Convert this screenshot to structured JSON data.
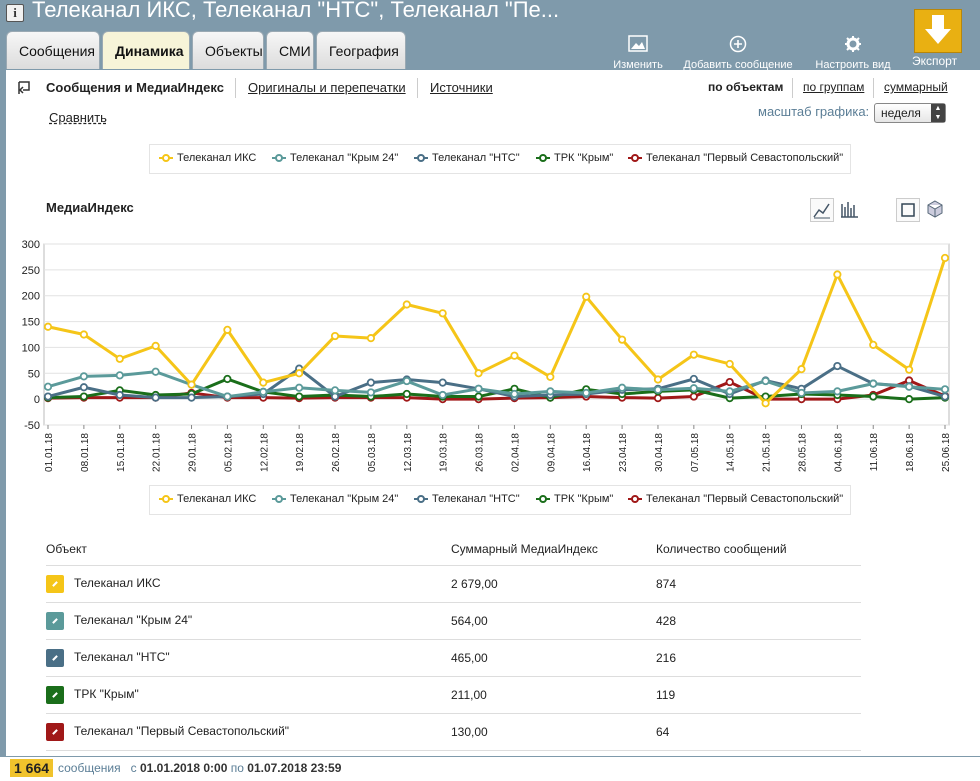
{
  "title": "Телеканал ИКС, Телеканал \"НТС\", Телеканал \"Пе...",
  "tabs": [
    {
      "label": "Сообщения"
    },
    {
      "label": "Динамика"
    },
    {
      "label": "Объекты"
    },
    {
      "label": "СМИ"
    },
    {
      "label": "География"
    }
  ],
  "toolbar": {
    "edit_label": "Изменить",
    "add_label": "Добавить сообщение",
    "customize_label": "Настроить вид",
    "export_label": "Экспорт"
  },
  "subnav": {
    "current": "Сообщения и МедиаИндекс",
    "originals": "Оригиналы и перепечатки",
    "sources": "Источники",
    "compare": "Сравнить",
    "by_objects": "по объектам",
    "by_groups": "по группам",
    "total": "суммарный",
    "scale_label": "масштаб графика:",
    "scale_value": "неделя"
  },
  "legend": [
    {
      "name": "Телеканал ИКС",
      "color": "#f5c518"
    },
    {
      "name": "Телеканал \"Крым 24\"",
      "color": "#5b9a9a"
    },
    {
      "name": "Телеканал \"НТС\"",
      "color": "#4a6f86"
    },
    {
      "name": "ТРК \"Крым\"",
      "color": "#1a6e1a"
    },
    {
      "name": "Телеканал \"Первый Севастопольский\"",
      "color": "#a01818"
    }
  ],
  "chart_data": {
    "type": "line",
    "title": "МедиаИндекс",
    "ylim": [
      -50,
      300
    ],
    "yticks": [
      300,
      250,
      200,
      150,
      100,
      50,
      0,
      -50
    ],
    "x": [
      "01.01.18",
      "08.01.18",
      "15.01.18",
      "22.01.18",
      "29.01.18",
      "05.02.18",
      "12.02.18",
      "19.02.18",
      "26.02.18",
      "05.03.18",
      "12.03.18",
      "19.03.18",
      "26.03.18",
      "02.04.18",
      "09.04.18",
      "16.04.18",
      "23.04.18",
      "30.04.18",
      "07.05.18",
      "14.05.18",
      "21.05.18",
      "28.05.18",
      "04.06.18",
      "11.06.18",
      "18.06.18",
      "25.06.18"
    ],
    "grid": true,
    "legend_position": "top and bottom",
    "series": [
      {
        "name": "Телеканал ИКС",
        "color": "#f5c518",
        "values": [
          140,
          125,
          78,
          103,
          28,
          134,
          32,
          50,
          122,
          118,
          183,
          166,
          50,
          84,
          43,
          198,
          115,
          38,
          86,
          68,
          -8,
          58,
          241,
          105,
          57,
          273
        ]
      },
      {
        "name": "Телеканал \"Крым 24\"",
        "color": "#5b9a9a",
        "values": [
          24,
          44,
          46,
          53,
          28,
          5,
          14,
          22,
          17,
          13,
          35,
          8,
          20,
          10,
          15,
          12,
          22,
          18,
          21,
          15,
          35,
          12,
          15,
          30,
          24,
          19
        ]
      },
      {
        "name": "Телеканал \"НТС\"",
        "color": "#4a6f86",
        "values": [
          5,
          23,
          8,
          3,
          3,
          5,
          10,
          59,
          5,
          32,
          38,
          32,
          20,
          5,
          8,
          10,
          18,
          20,
          39,
          10,
          36,
          20,
          64,
          30,
          25,
          5
        ]
      },
      {
        "name": "ТРК \"Крым\"",
        "color": "#1a6e1a",
        "values": [
          3,
          5,
          17,
          8,
          10,
          39,
          14,
          5,
          8,
          5,
          10,
          5,
          5,
          20,
          3,
          19,
          10,
          15,
          18,
          2,
          5,
          10,
          8,
          5,
          0,
          3
        ]
      },
      {
        "name": "Телеканал \"Первый Севастопольский\"",
        "color": "#a01818",
        "values": [
          2,
          3,
          3,
          3,
          12,
          3,
          3,
          2,
          3,
          3,
          3,
          0,
          0,
          2,
          3,
          5,
          3,
          2,
          5,
          33,
          0,
          0,
          0,
          8,
          36,
          6
        ]
      }
    ]
  },
  "table": {
    "headers": [
      "Объект",
      "Суммарный МедиаИндекс",
      "Количество сообщений"
    ],
    "rows": [
      {
        "name": "Телеканал ИКС",
        "index": "2 679,00",
        "count": "874",
        "color": "#f5c518"
      },
      {
        "name": "Телеканал \"Крым 24\"",
        "index": "564,00",
        "count": "428",
        "color": "#5b9a9a"
      },
      {
        "name": "Телеканал \"НТС\"",
        "index": "465,00",
        "count": "216",
        "color": "#4a6f86"
      },
      {
        "name": "ТРК \"Крым\"",
        "index": "211,00",
        "count": "119",
        "color": "#1a6e1a"
      },
      {
        "name": "Телеканал \"Первый Севастопольский\"",
        "index": "130,00",
        "count": "64",
        "color": "#a01818"
      }
    ]
  },
  "footer": {
    "count": "1 664",
    "messages": "сообщения",
    "from_label": "с",
    "from_date": "01.01.2018",
    "from_time": "0:00",
    "to_label": "по",
    "to_date": "01.07.2018",
    "to_time": "23:59"
  }
}
